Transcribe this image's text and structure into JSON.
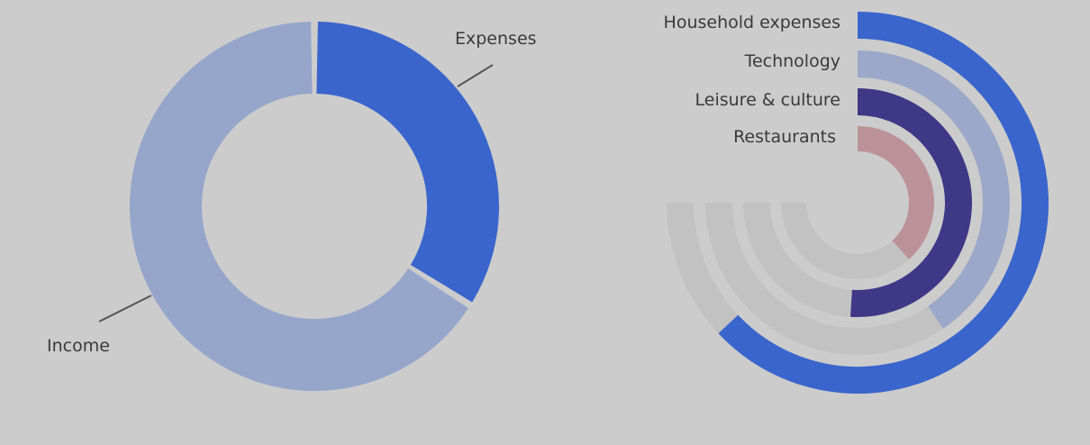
{
  "chart_data": [
    {
      "type": "pie",
      "variant": "donut",
      "title": "",
      "slices": [
        {
          "label": "Expenses",
          "value": 34,
          "color": "#3a65cc"
        },
        {
          "label": "Income",
          "value": 66,
          "color": "#96a6cb"
        }
      ]
    },
    {
      "type": "radial-bar",
      "title": "",
      "max": 100,
      "track_color": "#c2c2c2",
      "bars": [
        {
          "label": "Household expenses",
          "value": 84,
          "color": "#3a65cc"
        },
        {
          "label": "Technology",
          "value": 54,
          "color": "#9ca8c9"
        },
        {
          "label": "Leisure & culture",
          "value": 68,
          "color": "#3f3886"
        },
        {
          "label": "Restaurants",
          "value": 51,
          "color": "#bc9299"
        }
      ]
    }
  ]
}
